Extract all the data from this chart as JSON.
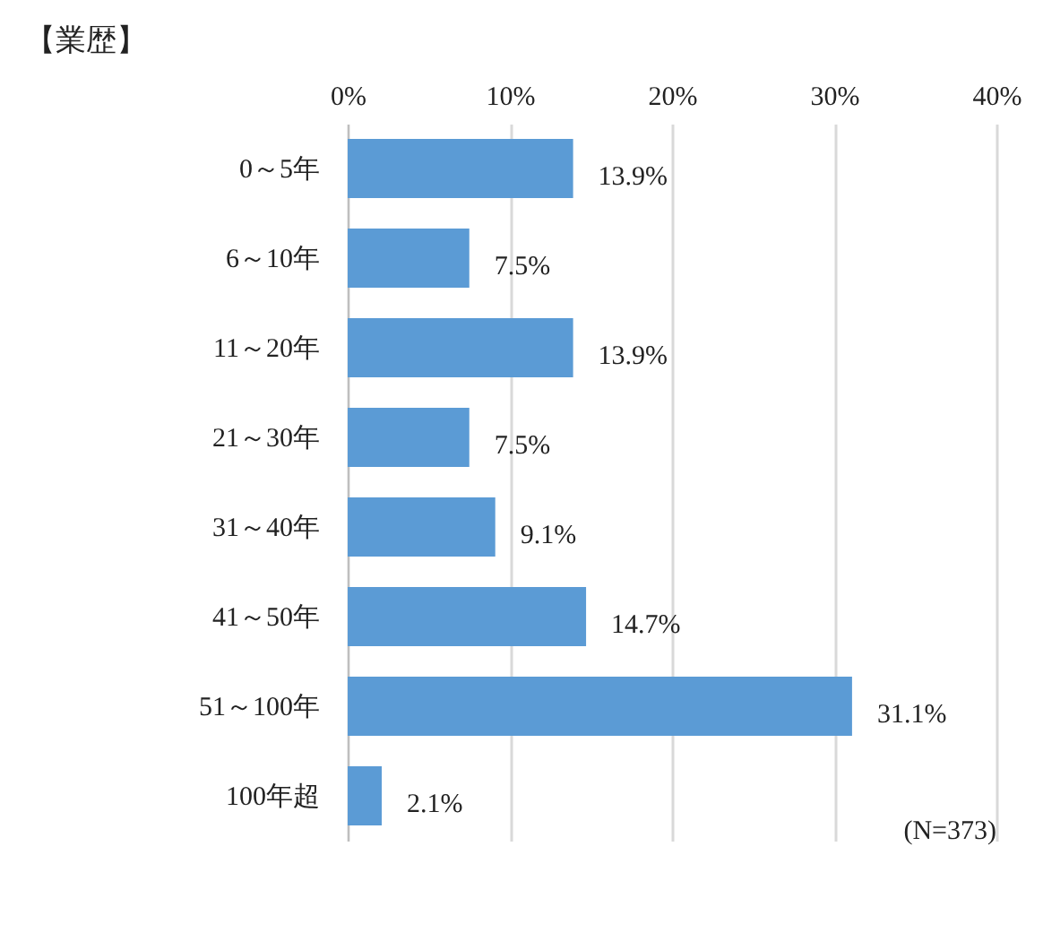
{
  "chart_data": {
    "type": "bar",
    "orientation": "horizontal",
    "title": "【業歴】",
    "categories": [
      "0～5年",
      "6～10年",
      "11～20年",
      "21～30年",
      "31～40年",
      "41～50年",
      "51～100年",
      "100年超"
    ],
    "values": [
      13.9,
      7.5,
      13.9,
      7.5,
      9.1,
      14.7,
      31.1,
      2.1
    ],
    "value_labels": [
      "13.9%",
      "7.5%",
      "13.9%",
      "7.5%",
      "9.1%",
      "14.7%",
      "31.1%",
      "2.1%"
    ],
    "color": "#5b9bd5",
    "xlim": [
      0,
      40
    ],
    "xticks": [
      {
        "value": 0,
        "label": "0%"
      },
      {
        "value": 10,
        "label": "10%"
      },
      {
        "value": 20,
        "label": "20%"
      },
      {
        "value": 30,
        "label": "30%"
      },
      {
        "value": 40,
        "label": "40%"
      }
    ],
    "grid": "x",
    "annotations": [
      "(N=373)"
    ]
  }
}
